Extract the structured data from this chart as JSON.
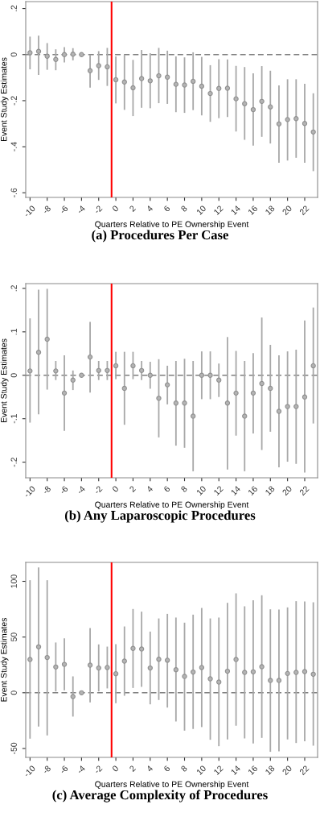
{
  "chart_data": [
    {
      "type": "scatter",
      "title": "(a) Procedures Per Case",
      "xlabel": "Quarters Relative to PE Ownership Event",
      "ylabel": "Event Study Estimates",
      "x": [
        -10,
        -9,
        -8,
        -7,
        -6,
        -5,
        -4,
        -3,
        -2,
        -1,
        0,
        1,
        2,
        3,
        4,
        5,
        6,
        7,
        8,
        9,
        10,
        11,
        12,
        13,
        14,
        15,
        16,
        17,
        18,
        19,
        20,
        21,
        22,
        23
      ],
      "series": [
        {
          "color": "#8f8f8f",
          "values": [
            0.008,
            0.014,
            -0.007,
            -0.021,
            0,
            0.002,
            0,
            -0.07,
            -0.048,
            -0.053,
            -0.109,
            -0.119,
            -0.144,
            -0.104,
            -0.114,
            -0.092,
            -0.098,
            -0.129,
            -0.132,
            -0.116,
            -0.137,
            -0.169,
            -0.147,
            -0.146,
            -0.192,
            -0.213,
            -0.239,
            -0.203,
            -0.227,
            -0.301,
            -0.282,
            -0.278,
            -0.299,
            -0.336
          ],
          "errors": [
            [
              -0.064,
              0.078
            ],
            [
              -0.088,
              0.082
            ],
            [
              -0.066,
              0.05
            ],
            [
              -0.068,
              0.023
            ],
            [
              -0.034,
              0.032
            ],
            [
              -0.025,
              0.028
            ],
            null,
            [
              -0.143,
              0
            ],
            [
              -0.11,
              0.015
            ],
            [
              -0.136,
              0.029
            ],
            [
              -0.212,
              -0.008
            ],
            [
              -0.24,
              -0.001
            ],
            [
              -0.267,
              -0.023
            ],
            [
              -0.231,
              0.02
            ],
            [
              -0.233,
              0.006
            ],
            [
              -0.211,
              0.029
            ],
            [
              -0.214,
              0.017
            ],
            [
              -0.25,
              -0.008
            ],
            [
              -0.253,
              -0.012
            ],
            [
              -0.241,
              0.01
            ],
            [
              -0.264,
              -0.01
            ],
            [
              -0.292,
              -0.046
            ],
            [
              -0.276,
              -0.02
            ],
            [
              -0.271,
              -0.021
            ],
            [
              -0.334,
              -0.049
            ],
            [
              -0.37,
              -0.054
            ],
            [
              -0.395,
              -0.081
            ],
            [
              -0.357,
              -0.05
            ],
            [
              -0.386,
              -0.07
            ],
            [
              -0.47,
              -0.134
            ],
            [
              -0.46,
              -0.107
            ],
            [
              -0.448,
              -0.107
            ],
            [
              -0.47,
              -0.127
            ],
            [
              -0.506,
              -0.168
            ]
          ]
        }
      ],
      "xlim": [
        -10.5,
        23.5
      ],
      "ylim": [
        -0.62,
        0.23
      ],
      "xticks": [
        -10,
        -8,
        -6,
        -4,
        -2,
        0,
        2,
        4,
        6,
        8,
        10,
        12,
        14,
        16,
        18,
        20,
        22
      ],
      "yticks": [
        {
          "value": -0.6,
          "label": "-.6"
        },
        {
          "value": -0.4,
          "label": "-.4"
        },
        {
          "value": -0.2,
          "label": "-.2"
        },
        {
          "value": 0,
          "label": "0"
        },
        {
          "value": 0.2,
          "label": ".2"
        }
      ],
      "ref_lines": [
        {
          "axis": "x",
          "value": -0.5,
          "color": "#ff0000",
          "line_style": "solid"
        },
        {
          "axis": "y",
          "value": 0,
          "color": "#7f7f7f",
          "line_style": "dashed"
        }
      ],
      "marker": "circle",
      "grid": false,
      "legend": false
    },
    {
      "type": "scatter",
      "title": "(b) Any Laparoscopic Procedures",
      "xlabel": "Quarters Relative to PE Ownership Event",
      "ylabel": "Event Study Estimates",
      "x": [
        -10,
        -9,
        -8,
        -7,
        -6,
        -5,
        -4,
        -3,
        -2,
        -1,
        0,
        1,
        2,
        3,
        4,
        5,
        6,
        7,
        8,
        9,
        10,
        11,
        12,
        13,
        14,
        15,
        16,
        17,
        18,
        19,
        20,
        21,
        22,
        23
      ],
      "series": [
        {
          "color": "#8f8f8f",
          "values": [
            0.01,
            0.053,
            0.083,
            0.01,
            -0.041,
            -0.011,
            0,
            0.042,
            0.011,
            0.011,
            0.022,
            -0.03,
            0.022,
            0.011,
            0,
            -0.053,
            -0.022,
            -0.064,
            -0.064,
            -0.094,
            0,
            0,
            -0.011,
            -0.064,
            -0.041,
            -0.094,
            -0.041,
            -0.019,
            -0.03,
            -0.083,
            -0.072,
            -0.072,
            -0.05,
            0.022
          ],
          "errors": [
            [
              -0.109,
              0.131
            ],
            [
              -0.09,
              0.197
            ],
            [
              -0.033,
              0.199
            ],
            [
              -0.011,
              0.033
            ],
            [
              -0.128,
              0.046
            ],
            [
              -0.034,
              0.011
            ],
            null,
            [
              -0.04,
              0.123
            ],
            [
              -0.011,
              0.033
            ],
            [
              -0.011,
              0.033
            ],
            [
              -0.009,
              0.054
            ],
            [
              -0.114,
              0.054
            ],
            [
              -0.009,
              0.054
            ],
            [
              -0.011,
              0.033
            ],
            [
              -0.031,
              0.031
            ],
            [
              -0.143,
              0.037
            ],
            [
              -0.067,
              0.022
            ],
            [
              -0.162,
              0.033
            ],
            [
              -0.167,
              0.038
            ],
            [
              -0.221,
              0.033
            ],
            [
              -0.055,
              0.055
            ],
            [
              -0.055,
              0.055
            ],
            [
              -0.05,
              0.027
            ],
            [
              -0.217,
              0.088
            ],
            [
              -0.139,
              0.056
            ],
            [
              -0.221,
              0.033
            ],
            [
              -0.134,
              0.051
            ],
            [
              -0.172,
              0.133
            ],
            [
              -0.13,
              0.07
            ],
            [
              -0.212,
              0.046
            ],
            [
              -0.199,
              0.055
            ],
            [
              -0.204,
              0.059
            ],
            [
              -0.224,
              0.126
            ],
            [
              -0.111,
              0.156
            ]
          ]
        }
      ],
      "xlim": [
        -10.5,
        23.5
      ],
      "ylim": [
        -0.236,
        0.211
      ],
      "xticks": [
        -10,
        -8,
        -6,
        -4,
        -2,
        0,
        2,
        4,
        6,
        8,
        10,
        12,
        14,
        16,
        18,
        20,
        22
      ],
      "yticks": [
        {
          "value": -0.2,
          "label": "-.2"
        },
        {
          "value": -0.1,
          "label": "-.1"
        },
        {
          "value": 0,
          "label": "0"
        },
        {
          "value": 0.1,
          "label": ".1"
        },
        {
          "value": 0.2,
          "label": ".2"
        }
      ],
      "ref_lines": [
        {
          "axis": "x",
          "value": -0.5,
          "color": "#ff0000",
          "line_style": "solid"
        },
        {
          "axis": "y",
          "value": 0,
          "color": "#7f7f7f",
          "line_style": "dashed"
        }
      ],
      "marker": "circle",
      "grid": false,
      "legend": false
    },
    {
      "type": "scatter",
      "title": "(c) Average Complexity of Procedures",
      "xlabel": "Quarters Relative to PE Ownership Event",
      "ylabel": "Event Study Estimates",
      "x": [
        -10,
        -9,
        -8,
        -7,
        -6,
        -5,
        -4,
        -3,
        -2,
        -1,
        0,
        1,
        2,
        3,
        4,
        5,
        6,
        7,
        8,
        9,
        10,
        11,
        12,
        13,
        14,
        15,
        16,
        17,
        18,
        19,
        20,
        21,
        22,
        23
      ],
      "series": [
        {
          "color": "#8f8f8f",
          "values": [
            29.9,
            41.2,
            31.6,
            23.1,
            25.5,
            -3.4,
            0,
            24.8,
            22.2,
            22.7,
            17.1,
            28.4,
            39.8,
            39.3,
            22.2,
            30.1,
            29.2,
            20.7,
            14.7,
            18.6,
            22.7,
            12.5,
            9.6,
            19.3,
            29.9,
            18.3,
            18.8,
            23.4,
            11.1,
            11.1,
            17.3,
            18.3,
            19,
            16.6
          ],
          "errors": [
            [
              -41.2,
              101
            ],
            [
              -30.4,
              112.5
            ],
            [
              -38.3,
              101
            ],
            [
              1.2,
              45.1
            ],
            [
              2.2,
              48.9
            ],
            [
              -21.4,
              14.7
            ],
            null,
            [
              -8.7,
              58.1
            ],
            [
              1.2,
              43.4
            ],
            [
              3.9,
              41.4
            ],
            [
              -9.4,
              43.6
            ],
            [
              -2.7,
              59.5
            ],
            [
              4.3,
              75.2
            ],
            [
              5.3,
              72.8
            ],
            [
              -10.4,
              54.9
            ],
            [
              -6.5,
              66.7
            ],
            [
              -13.3,
              70.8
            ],
            [
              -25.8,
              67.5
            ],
            [
              -34,
              62.9
            ],
            [
              -32.5,
              70.1
            ],
            [
              -30.8,
              76.1
            ],
            [
              -42.2,
              66.7
            ],
            [
              -48,
              67.5
            ],
            [
              -41.9,
              80.7
            ],
            [
              -29.6,
              89.2
            ],
            [
              -41,
              77.6
            ],
            [
              -45.5,
              83.1
            ],
            [
              -40.5,
              87.5
            ],
            [
              -53,
              74.9
            ],
            [
              -52.5,
              74.7
            ],
            [
              -41.9,
              76.6
            ],
            [
              -45.1,
              82.2
            ],
            [
              -43.6,
              81.9
            ],
            [
              -47.5,
              81.2
            ]
          ]
        }
      ],
      "xlim": [
        -10.5,
        23.5
      ],
      "ylim": [
        -58,
        117
      ],
      "xticks": [
        -10,
        -8,
        -6,
        -4,
        -2,
        0,
        2,
        4,
        6,
        8,
        10,
        12,
        14,
        16,
        18,
        20,
        22
      ],
      "yticks": [
        -50,
        0,
        50,
        100
      ],
      "ref_lines": [
        {
          "axis": "x",
          "value": -0.5,
          "color": "#ff0000",
          "line_style": "solid"
        },
        {
          "axis": "y",
          "value": 0,
          "color": "#7f7f7f",
          "line_style": "dashed"
        }
      ],
      "marker": "circle",
      "grid": false,
      "legend": false
    }
  ]
}
